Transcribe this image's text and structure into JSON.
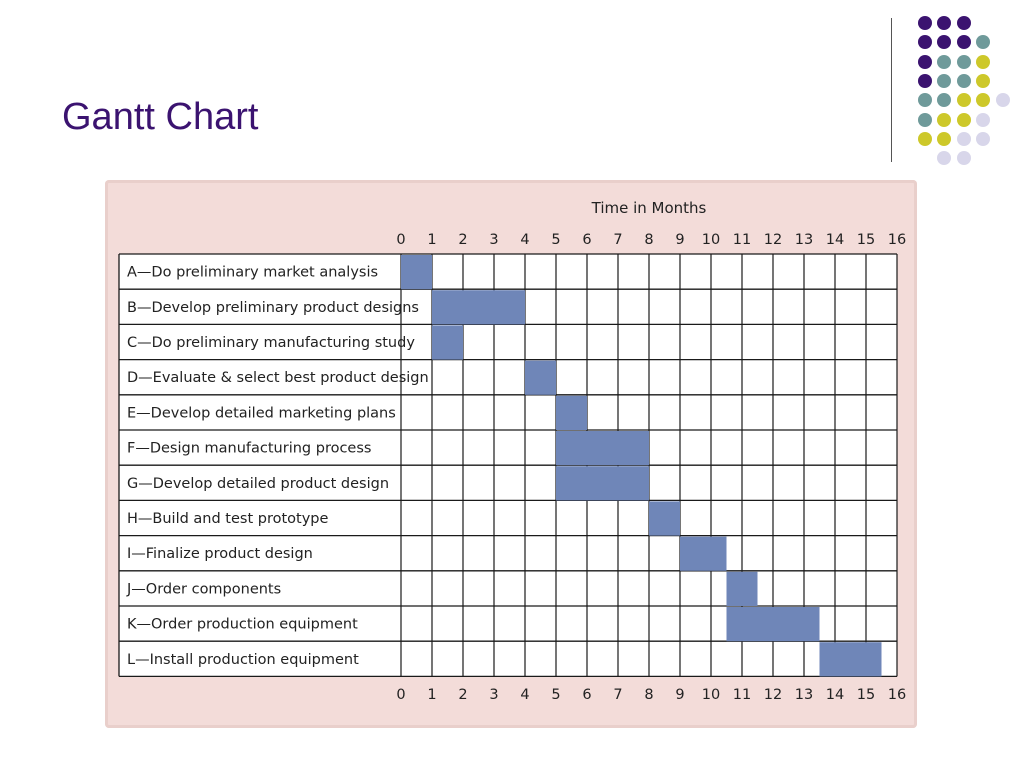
{
  "page_title": "Gantt Chart",
  "palette": {
    "title_color": "#3b1370",
    "bar_color": "#6f86b8",
    "panel_color": "#f3dcd9",
    "dot_purple": "#3b1370",
    "dot_teal": "#6f9a9a",
    "dot_yellow": "#cdc82a",
    "dot_lavender": "#d8d6ea"
  },
  "chart_data": {
    "type": "gantt",
    "title": "Time in Months",
    "xlim": [
      0,
      16
    ],
    "x_ticks": [
      "0",
      "1",
      "2",
      "3",
      "4",
      "5",
      "6",
      "7",
      "8",
      "9",
      "10",
      "11",
      "12",
      "13",
      "14",
      "15",
      "16"
    ],
    "grid": true,
    "tasks": [
      {
        "label": "A—Do preliminary market analysis",
        "start": 0,
        "end": 1
      },
      {
        "label": "B—Develop preliminary product designs",
        "start": 1,
        "end": 4
      },
      {
        "label": "C—Do preliminary manufacturing study",
        "start": 1,
        "end": 2
      },
      {
        "label": "D—Evaluate & select best product design",
        "start": 4,
        "end": 5
      },
      {
        "label": "E—Develop detailed marketing plans",
        "start": 5,
        "end": 6
      },
      {
        "label": "F—Design manufacturing process",
        "start": 5,
        "end": 8
      },
      {
        "label": "G—Develop detailed product design",
        "start": 5,
        "end": 8
      },
      {
        "label": "H—Build and test prototype",
        "start": 8,
        "end": 9
      },
      {
        "label": "I—Finalize product design",
        "start": 9,
        "end": 10.5
      },
      {
        "label": "J—Order components",
        "start": 10.5,
        "end": 11.5
      },
      {
        "label": "K—Order production equipment",
        "start": 10.5,
        "end": 13.5
      },
      {
        "label": "L—Install production equipment",
        "start": 13.5,
        "end": 15.5
      }
    ]
  }
}
